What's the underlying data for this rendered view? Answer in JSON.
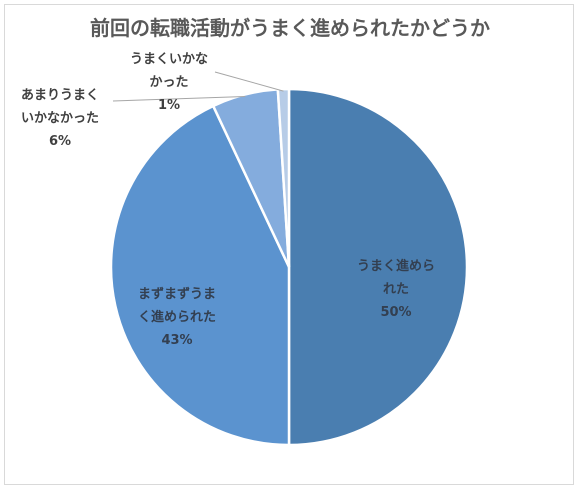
{
  "chart_data": {
    "type": "pie",
    "title": "前回の転職活動がうまく進められたかどうか",
    "slices": [
      {
        "name": "うまく進められた",
        "value": 50,
        "percent_label": "50%",
        "color": "#4A7EB0",
        "label_lines": [
          "うまく進めら",
          "れた"
        ]
      },
      {
        "name": "まずまずうまく進められた",
        "value": 43,
        "percent_label": "43%",
        "color": "#5B93CF",
        "label_lines": [
          "まずまずうま",
          "く進められた"
        ]
      },
      {
        "name": "あまりうまくいかなかった",
        "value": 6,
        "percent_label": "6%",
        "color": "#84ACDD",
        "label_lines": [
          "あまりうまく",
          "いかなかった"
        ]
      },
      {
        "name": "うまくいかなかった",
        "value": 1,
        "percent_label": "1%",
        "color": "#B7CCE7",
        "label_lines": [
          "うまくいかな",
          "かった"
        ]
      }
    ],
    "legend": "none"
  },
  "colors": {
    "inside_label": "#333f50",
    "outside_label": "#404040",
    "leader_line": "#a6a6a6",
    "slice_border": "#ffffff"
  }
}
